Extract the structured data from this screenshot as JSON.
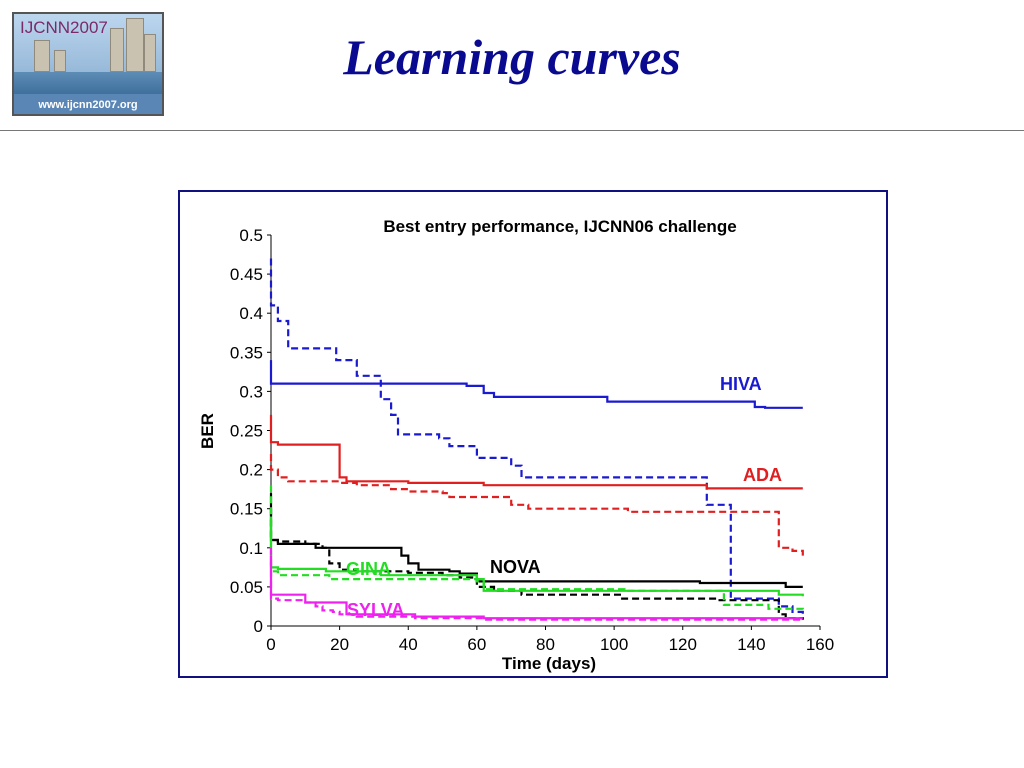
{
  "slide": {
    "title": "Learning curves",
    "logo_text": "IJCNN2007",
    "logo_url": "www.ijcnn2007.org"
  },
  "chart_data": {
    "type": "line",
    "title": "Best entry performance, IJCNN06 challenge",
    "xlabel": "Time (days)",
    "ylabel": "BER",
    "xlim": [
      0,
      160
    ],
    "ylim": [
      0,
      0.5
    ],
    "xticks": [
      "0",
      "20",
      "40",
      "60",
      "80",
      "100",
      "120",
      "140",
      "160"
    ],
    "yticks": [
      "0",
      "0.05",
      "0.1",
      "0.15",
      "0.2",
      "0.25",
      "0.3",
      "0.35",
      "0.4",
      "0.45",
      "0.5"
    ],
    "series": [
      {
        "name": "HIVA",
        "color": "#1a1ad0",
        "dash": false,
        "x": [
          0,
          0,
          55,
          57,
          60,
          62,
          65,
          97,
          98,
          140,
          141,
          144,
          155
        ],
        "y": [
          0.34,
          0.31,
          0.31,
          0.307,
          0.307,
          0.298,
          0.293,
          0.293,
          0.287,
          0.287,
          0.28,
          0.279,
          0.279
        ]
      },
      {
        "name": "HIVA",
        "color": "#1a1ad0",
        "dash": true,
        "x": [
          0,
          0,
          2,
          5,
          18,
          19,
          23,
          25,
          31,
          32,
          35,
          37,
          49,
          52,
          60,
          62,
          70,
          73,
          125,
          127,
          132,
          134,
          146,
          148,
          152,
          155
        ],
        "y": [
          0.47,
          0.41,
          0.39,
          0.355,
          0.355,
          0.34,
          0.34,
          0.32,
          0.32,
          0.29,
          0.27,
          0.245,
          0.24,
          0.23,
          0.215,
          0.215,
          0.205,
          0.19,
          0.19,
          0.155,
          0.155,
          0.035,
          0.035,
          0.025,
          0.018,
          0.012
        ]
      },
      {
        "name": "ADA",
        "color": "#e02020",
        "dash": false,
        "x": [
          0,
          0,
          2,
          18,
          20,
          22,
          35,
          40,
          60,
          62,
          125,
          127,
          155
        ],
        "y": [
          0.27,
          0.235,
          0.232,
          0.232,
          0.19,
          0.185,
          0.185,
          0.183,
          0.183,
          0.18,
          0.18,
          0.176,
          0.176
        ]
      },
      {
        "name": "ADA",
        "color": "#e02020",
        "dash": true,
        "x": [
          0,
          0,
          2,
          5,
          15,
          20,
          25,
          35,
          40,
          50,
          52,
          65,
          70,
          75,
          100,
          104,
          145,
          148,
          152,
          155
        ],
        "y": [
          0.22,
          0.2,
          0.19,
          0.185,
          0.185,
          0.183,
          0.18,
          0.175,
          0.172,
          0.17,
          0.165,
          0.165,
          0.155,
          0.15,
          0.15,
          0.146,
          0.146,
          0.1,
          0.096,
          0.09
        ]
      },
      {
        "name": "NOVA",
        "color": "#000000",
        "dash": false,
        "x": [
          0,
          0,
          2,
          10,
          13,
          20,
          35,
          38,
          40,
          43,
          52,
          55,
          60,
          120,
          125,
          140,
          150,
          155
        ],
        "y": [
          0.17,
          0.11,
          0.105,
          0.105,
          0.1,
          0.1,
          0.1,
          0.09,
          0.08,
          0.072,
          0.07,
          0.067,
          0.057,
          0.057,
          0.055,
          0.055,
          0.05,
          0.05
        ]
      },
      {
        "name": "NOVA",
        "color": "#000000",
        "dash": true,
        "x": [
          0,
          0,
          2,
          10,
          15,
          17,
          20,
          25,
          40,
          50,
          55,
          60,
          65,
          70,
          73,
          100,
          102,
          125,
          130,
          140,
          148,
          150,
          155
        ],
        "y": [
          0.15,
          0.11,
          0.108,
          0.105,
          0.1,
          0.08,
          0.072,
          0.07,
          0.068,
          0.065,
          0.062,
          0.05,
          0.045,
          0.045,
          0.04,
          0.04,
          0.035,
          0.035,
          0.033,
          0.033,
          0.015,
          0.01,
          0.008
        ]
      },
      {
        "name": "GINA",
        "color": "#22dd22",
        "dash": false,
        "x": [
          0,
          0,
          2,
          15,
          16,
          30,
          32,
          55,
          60,
          62,
          132,
          140,
          148,
          155
        ],
        "y": [
          0.14,
          0.075,
          0.073,
          0.073,
          0.07,
          0.07,
          0.065,
          0.065,
          0.06,
          0.045,
          0.045,
          0.045,
          0.04,
          0.038
        ]
      },
      {
        "name": "GINA",
        "color": "#22dd22",
        "dash": true,
        "x": [
          0,
          0,
          2,
          15,
          17,
          55,
          60,
          62,
          100,
          103,
          130,
          132,
          143,
          145,
          155
        ],
        "y": [
          0.18,
          0.07,
          0.065,
          0.065,
          0.06,
          0.06,
          0.057,
          0.047,
          0.047,
          0.045,
          0.045,
          0.027,
          0.027,
          0.022,
          0.02
        ]
      },
      {
        "name": "SYLVA",
        "color": "#ee22ee",
        "dash": false,
        "x": [
          0,
          0,
          8,
          10,
          20,
          22,
          40,
          42,
          60,
          62,
          155
        ],
        "y": [
          0.09,
          0.04,
          0.04,
          0.03,
          0.03,
          0.015,
          0.015,
          0.012,
          0.012,
          0.01,
          0.01
        ]
      },
      {
        "name": "SYLVA",
        "color": "#ee22ee",
        "dash": true,
        "x": [
          0,
          0,
          2,
          8,
          10,
          13,
          15,
          18,
          20,
          25,
          40,
          42,
          60,
          62,
          155
        ],
        "y": [
          0.1,
          0.035,
          0.033,
          0.033,
          0.03,
          0.025,
          0.02,
          0.018,
          0.015,
          0.012,
          0.012,
          0.01,
          0.01,
          0.008,
          0.008
        ]
      }
    ],
    "series_labels": [
      {
        "text": "HIVA",
        "color": "#1a1ad0"
      },
      {
        "text": "ADA",
        "color": "#e02020"
      },
      {
        "text": "NOVA",
        "color": "#000000"
      },
      {
        "text": "GINA",
        "color": "#22dd22"
      },
      {
        "text": "SYLVA",
        "color": "#ee22ee"
      }
    ]
  }
}
